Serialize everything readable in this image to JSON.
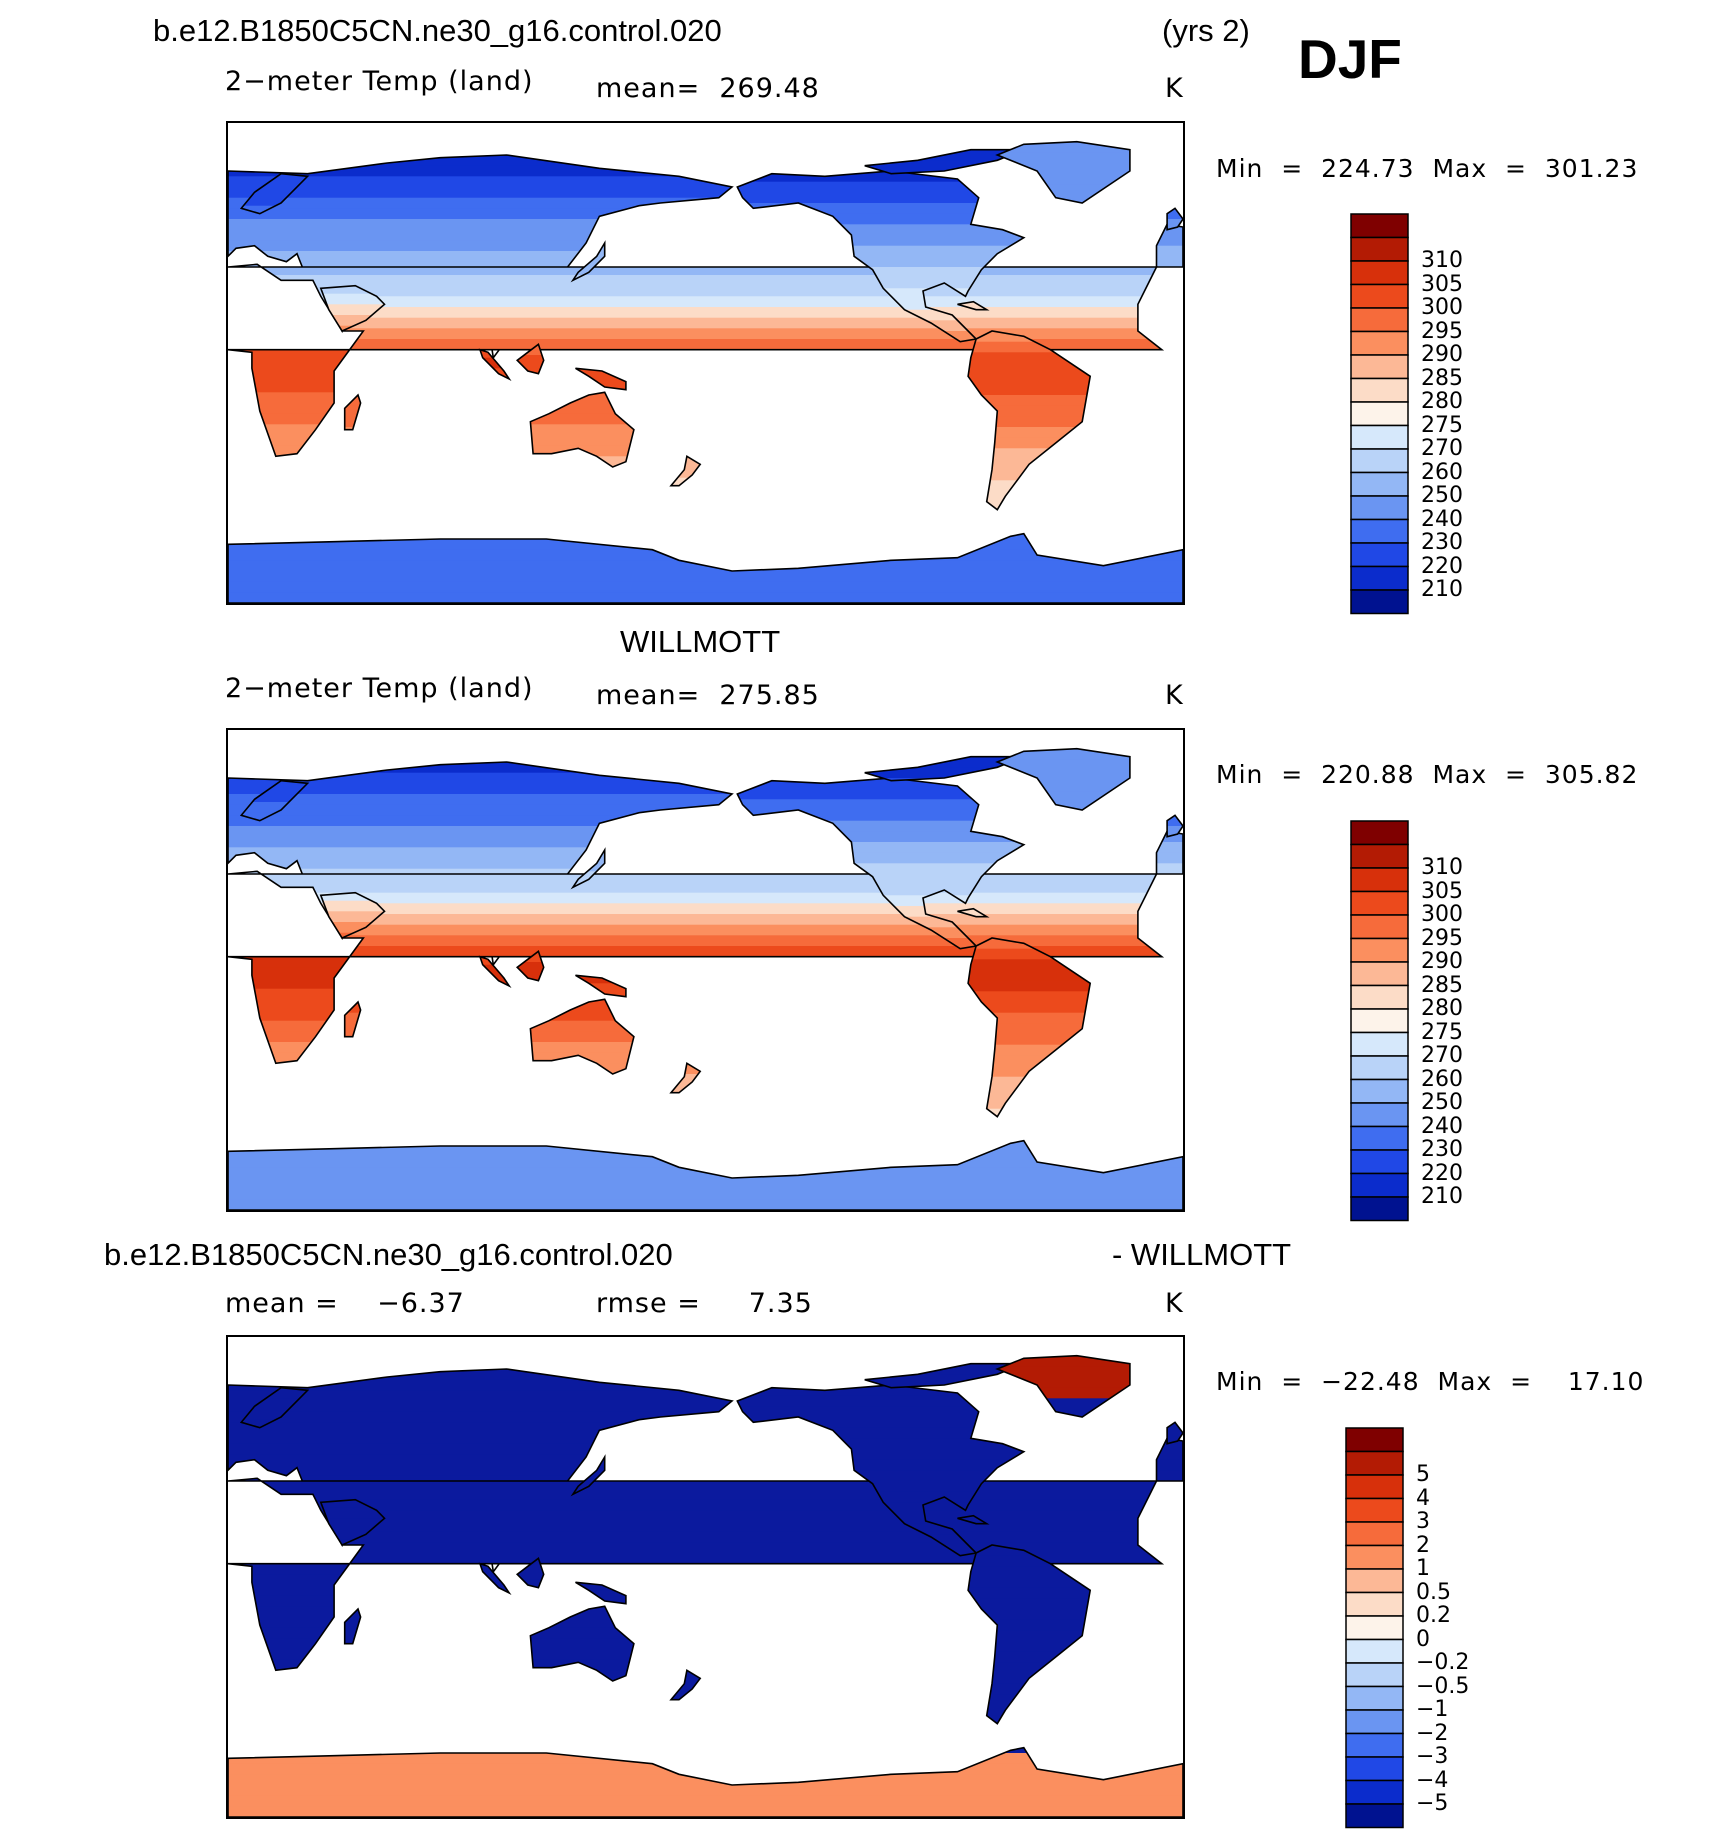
{
  "season": "DJF",
  "panels": [
    {
      "id": "model",
      "header_left": "b.e12.B1850C5CN.ne30_g16.control.020",
      "header_right": "(yrs 2)",
      "left_label": "2−meter Temp (land)",
      "mid_label": "mean=  269.48",
      "unit": "K",
      "minmax": "Min  =  224.73  Max  =  301.23",
      "palette": "abs",
      "colorbar": {
        "labels": [
          "310",
          "305",
          "300",
          "295",
          "290",
          "285",
          "280",
          "275",
          "270",
          "260",
          "250",
          "240",
          "230",
          "220",
          "210"
        ],
        "colors": [
          "#7f0000",
          "#b31b04",
          "#d7300b",
          "#ec4a1c",
          "#f66b3b",
          "#fb8f5f",
          "#fcb896",
          "#fcdcc7",
          "#fdf3ea",
          "#d6e8fb",
          "#b9d3f8",
          "#93b7f5",
          "#6a95f2",
          "#3f6df0",
          "#2048e6",
          "#0b2ccc",
          "#001290"
        ]
      },
      "map_data": {
        "type": "global_land_2m_temperature",
        "season": "DJF",
        "mean": 269.48,
        "min": 224.73,
        "max": 301.23,
        "unit": "K"
      }
    },
    {
      "id": "obs",
      "header_center": "WILLMOTT",
      "left_label": "2−meter Temp (land)",
      "mid_label": "mean=  275.85",
      "unit": "K",
      "minmax": "Min  =  220.88  Max  =  305.82",
      "palette": "abs",
      "colorbar": {
        "labels": [
          "310",
          "305",
          "300",
          "295",
          "290",
          "285",
          "280",
          "275",
          "270",
          "260",
          "250",
          "240",
          "230",
          "220",
          "210"
        ],
        "colors": [
          "#7f0000",
          "#b31b04",
          "#d7300b",
          "#ec4a1c",
          "#f66b3b",
          "#fb8f5f",
          "#fcb896",
          "#fcdcc7",
          "#fdf3ea",
          "#d6e8fb",
          "#b9d3f8",
          "#93b7f5",
          "#6a95f2",
          "#3f6df0",
          "#2048e6",
          "#0b2ccc",
          "#001290"
        ]
      },
      "map_data": {
        "type": "global_land_2m_temperature",
        "season": "DJF",
        "mean": 275.85,
        "min": 220.88,
        "max": 305.82,
        "unit": "K"
      }
    },
    {
      "id": "diff",
      "header_left": "b.e12.B1850C5CN.ne30_g16.control.020",
      "header_right": "- WILLMOTT",
      "left_label": "mean =    −6.37",
      "mid_label": "rmse =     7.35",
      "unit": "K",
      "minmax": "Min  =  −22.48  Max  =    17.10",
      "palette": "diff",
      "colorbar": {
        "labels": [
          "5",
          "4",
          "3",
          "2",
          "1",
          "0.5",
          "0.2",
          "0",
          "−0.2",
          "−0.5",
          "−1",
          "−2",
          "−3",
          "−4",
          "−5"
        ],
        "colors": [
          "#7f0000",
          "#b31b04",
          "#d7300b",
          "#ec4a1c",
          "#f66b3b",
          "#fb8f5f",
          "#fcb896",
          "#fcdcc7",
          "#fdf3ea",
          "#d6e8fb",
          "#b9d3f8",
          "#93b7f5",
          "#6a95f2",
          "#3f6df0",
          "#2048e6",
          "#0b2ccc",
          "#001290"
        ]
      },
      "map_data": {
        "type": "global_land_2m_temperature_difference",
        "season": "DJF",
        "mean": -6.37,
        "rmse": 7.35,
        "min": -22.48,
        "max": 17.1,
        "unit": "K"
      }
    }
  ]
}
